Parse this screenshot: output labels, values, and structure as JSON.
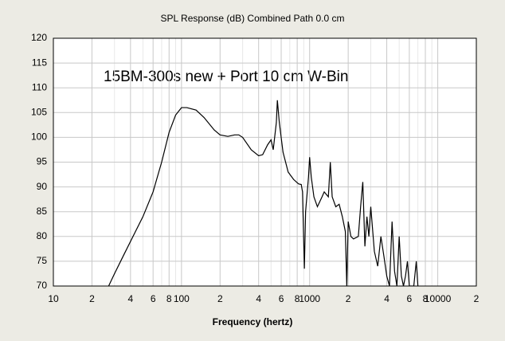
{
  "chart_data": {
    "type": "line",
    "title": "SPL Response (dB)   Combined   Path 0.0 cm",
    "annotation": "15BM-300s new + Port 10 cm W-Bin",
    "annotation_color": "#ee5aa8",
    "xlabel": "Frequency (hertz)",
    "log_x": true,
    "grid": true,
    "xlim": [
      10,
      20000
    ],
    "ylim": [
      70,
      120
    ],
    "yticks": [
      70,
      75,
      80,
      85,
      90,
      95,
      100,
      105,
      110,
      115,
      120
    ],
    "xticks": [
      10,
      {
        "value": 20,
        "label": "2"
      },
      {
        "value": 40,
        "label": "4"
      },
      {
        "value": 60,
        "label": "6"
      },
      {
        "value": 80,
        "label": "8"
      },
      100,
      {
        "value": 200,
        "label": "2"
      },
      {
        "value": 400,
        "label": "4"
      },
      {
        "value": 600,
        "label": "6"
      },
      {
        "value": 800,
        "label": "8"
      },
      1000,
      {
        "value": 2000,
        "label": "2"
      },
      {
        "value": 4000,
        "label": "4"
      },
      {
        "value": 6000,
        "label": "6"
      },
      {
        "value": 8000,
        "label": "8"
      },
      10000,
      {
        "value": 20000,
        "label": "2"
      }
    ],
    "xminor": [
      30,
      50,
      70,
      90,
      300,
      500,
      700,
      900,
      3000,
      5000,
      7000,
      9000
    ],
    "x": [
      27,
      30,
      35,
      40,
      50,
      60,
      70,
      80,
      90,
      100,
      110,
      130,
      150,
      180,
      200,
      230,
      260,
      280,
      300,
      350,
      400,
      430,
      470,
      500,
      520,
      550,
      560,
      580,
      620,
      680,
      750,
      820,
      860,
      880,
      910,
      930,
      980,
      1000,
      1030,
      1080,
      1150,
      1250,
      1300,
      1400,
      1450,
      1500,
      1600,
      1700,
      1800,
      1900,
      1950,
      2000,
      2100,
      2200,
      2400,
      2500,
      2600,
      2700,
      2800,
      2900,
      3000,
      3200,
      3400,
      3600,
      3800,
      4000,
      4200,
      4400,
      4600,
      4800,
      5000,
      5200,
      5400,
      5600,
      5800,
      6000,
      6500,
      6800,
      7000
    ],
    "series": [
      {
        "color": "#000000",
        "values": [
          70,
          72.5,
          76,
          79,
          84,
          89,
          95,
          101,
          104.5,
          106,
          106,
          105.5,
          104,
          101.5,
          100.5,
          100.2,
          100.5,
          100.5,
          100,
          97.5,
          96.3,
          96.5,
          98.5,
          99.5,
          97.5,
          103,
          107.5,
          103,
          97,
          93,
          91.5,
          90.6,
          90.5,
          89,
          73.5,
          85,
          92,
          96,
          92,
          88,
          86,
          88,
          89,
          88,
          95,
          88,
          86,
          86.5,
          84,
          81,
          70,
          83,
          80,
          79.5,
          80,
          86,
          91,
          78,
          84,
          80,
          86,
          77,
          74,
          80,
          76,
          72,
          70,
          83,
          73,
          70,
          80,
          72,
          70,
          72,
          75,
          70,
          70,
          75,
          70
        ]
      }
    ]
  }
}
